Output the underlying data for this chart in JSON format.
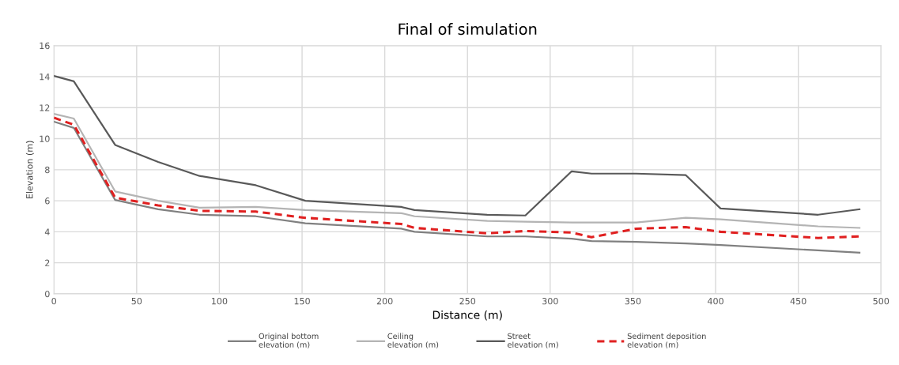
{
  "chart_data": {
    "type": "line",
    "title": "Final of simulation",
    "xlabel": "Distance (m)",
    "ylabel": "Elevation (m)",
    "x": [
      0,
      12,
      37,
      63,
      88,
      122,
      152,
      210,
      218,
      262,
      285,
      313,
      325,
      352,
      382,
      403,
      462,
      487
    ],
    "series": [
      {
        "name": "Original bottom\nelevation (m)",
        "color": "#808080",
        "line_style": "solid",
        "values": [
          11.1,
          10.7,
          6.05,
          5.45,
          5.1,
          5.0,
          4.55,
          4.2,
          4.0,
          3.7,
          3.7,
          3.55,
          3.4,
          3.35,
          3.25,
          3.15,
          2.8,
          2.65
        ]
      },
      {
        "name": "Ceiling\nelevation (m)",
        "color": "#b4b4b4",
        "line_style": "solid",
        "values": [
          11.6,
          11.3,
          6.6,
          6.0,
          5.55,
          5.6,
          5.4,
          5.2,
          5.0,
          4.7,
          4.65,
          4.6,
          4.6,
          4.6,
          4.9,
          4.8,
          4.35,
          4.25
        ]
      },
      {
        "name": "Street\nelevation (m)",
        "color": "#595959",
        "line_style": "solid",
        "values": [
          14.05,
          13.7,
          9.6,
          8.5,
          7.6,
          7.0,
          6.0,
          5.6,
          5.4,
          5.1,
          5.05,
          7.9,
          7.75,
          7.75,
          7.65,
          5.5,
          5.1,
          5.45
        ]
      },
      {
        "name": "Sediment deposition\nelevation (m)",
        "color": "#e02020",
        "line_style": "dashed",
        "values": [
          11.35,
          10.9,
          6.2,
          5.7,
          5.35,
          5.3,
          4.9,
          4.5,
          4.25,
          3.9,
          4.05,
          3.95,
          3.65,
          4.2,
          4.3,
          4.0,
          3.6,
          3.7
        ]
      }
    ],
    "xlim": [
      0,
      500
    ],
    "xticks": [
      0,
      50,
      100,
      150,
      200,
      250,
      300,
      350,
      400,
      450,
      500
    ],
    "ylim": [
      0,
      16
    ],
    "yticks": [
      0,
      2,
      4,
      6,
      8,
      10,
      12,
      14,
      16
    ],
    "grid": true,
    "legend": "bottom",
    "marker": "none"
  }
}
